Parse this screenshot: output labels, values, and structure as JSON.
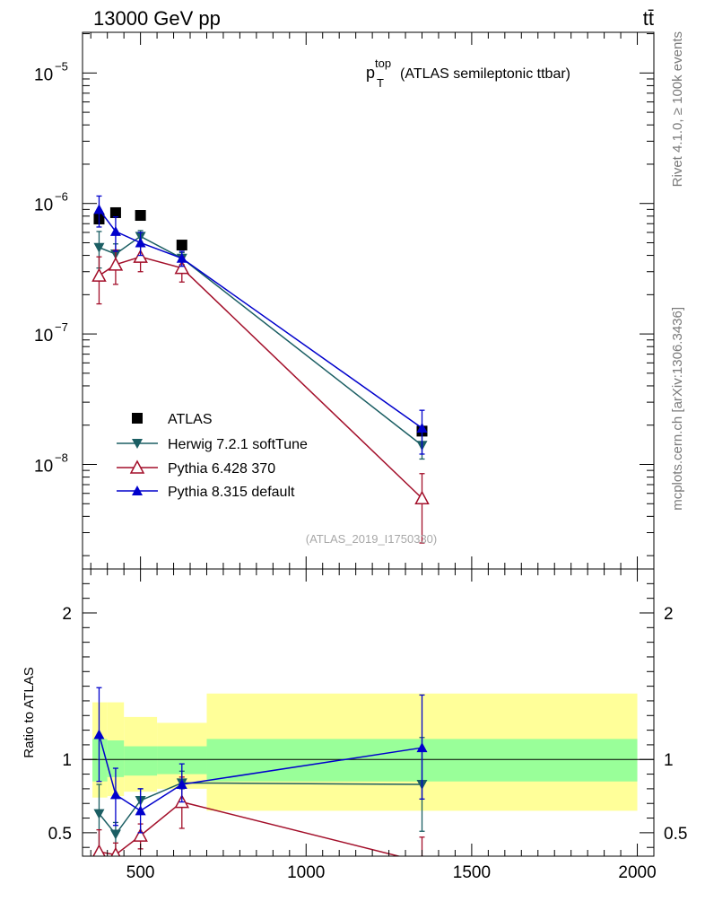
{
  "header": {
    "left_label": "13000 GeV pp",
    "right_label": "tt̄"
  },
  "side_labels": {
    "rivet": "Rivet 4.1.0, ≥ 100k events",
    "mcplots": "mcplots.cern.ch [arXiv:1306.3436]"
  },
  "chart_data": {
    "type": "scatter",
    "title_main": "p",
    "title_sup": "top",
    "title_sub": "T",
    "title_rest": "(ATLAS semileptonic ttbar)",
    "analysis_id": "(ATLAS_2019_I1750330)",
    "ratio_ylabel": "Ratio to ATLAS",
    "x": {
      "range": [
        325,
        2050
      ],
      "ticks": [
        500,
        1000,
        1500,
        2000
      ],
      "tick_labels": [
        "500",
        "1000",
        "1500",
        "2000"
      ]
    },
    "main_y": {
      "scale": "log",
      "range": [
        1.58e-09,
        2.05e-05
      ],
      "decade_exponents": [
        -8,
        -7,
        -6,
        -5
      ]
    },
    "ratio_y": {
      "range": [
        0.34,
        2.3
      ],
      "ticks": [
        0.5,
        1,
        2
      ],
      "tick_labels": [
        "0.5",
        "1",
        "2"
      ]
    },
    "bins": [
      [
        355,
        400
      ],
      [
        400,
        450
      ],
      [
        450,
        550
      ],
      [
        550,
        700
      ],
      [
        700,
        2000
      ]
    ],
    "band_inner": [
      [
        0.85,
        1.14
      ],
      [
        0.88,
        1.13
      ],
      [
        0.89,
        1.09
      ],
      [
        0.9,
        1.09
      ],
      [
        0.85,
        1.14
      ]
    ],
    "band_outer": [
      [
        0.74,
        1.39
      ],
      [
        0.75,
        1.39
      ],
      [
        0.78,
        1.29
      ],
      [
        0.8,
        1.25
      ],
      [
        0.65,
        1.45
      ]
    ],
    "series": [
      {
        "name": "ATLAS",
        "color": "#000000",
        "marker": "square",
        "x": [
          375,
          425,
          500,
          625,
          1350
        ],
        "y": [
          7.6e-07,
          8.5e-07,
          8.1e-07,
          4.8e-07,
          1.8e-08
        ]
      },
      {
        "name": "Herwig 7.2.1 softTune",
        "color": "#1b5e63",
        "marker": "triangle-down",
        "x": [
          375,
          425,
          500,
          625,
          1350
        ],
        "y": [
          4.6e-07,
          4.1e-07,
          5.6e-07,
          3.8e-07,
          1.4e-08
        ],
        "yerr": [
          [
            3.2e-07,
            6.1e-07
          ],
          [
            3.3e-07,
            4.9e-07
          ],
          [
            5e-07,
            6.2e-07
          ],
          [
            3.4e-07,
            4.2e-07
          ],
          [
            1.1e-08,
            1.8e-08
          ]
        ],
        "ratio": [
          0.63,
          0.49,
          0.72,
          0.84,
          0.83
        ],
        "ratio_err": [
          [
            0.35,
            0.83
          ],
          [
            0.35,
            0.57
          ],
          [
            0.63,
            0.8
          ],
          [
            0.8,
            0.92
          ],
          [
            0.51,
            1.15
          ]
        ]
      },
      {
        "name": "Pythia 6.428 370",
        "color": "#a30f2a",
        "marker": "triangle-up-open",
        "x": [
          375,
          425,
          500,
          625,
          1350
        ],
        "y": [
          2.8e-07,
          3.4e-07,
          3.9e-07,
          3.2e-07,
          5.5e-09
        ],
        "yerr": [
          [
            1.7e-07,
            3.9e-07
          ],
          [
            2.4e-07,
            4.4e-07
          ],
          [
            3e-07,
            4.8e-07
          ],
          [
            2.5e-07,
            3.9e-07
          ],
          [
            2.5e-09,
            8.5e-09
          ]
        ],
        "ratio": [
          0.37,
          0.35,
          0.48,
          0.71,
          0.3
        ],
        "ratio_err": [
          [
            0.22,
            0.52
          ],
          [
            0.27,
            0.43
          ],
          [
            0.39,
            0.56
          ],
          [
            0.53,
            0.88
          ],
          [
            0.14,
            0.47
          ]
        ]
      },
      {
        "name": "Pythia 8.315 default",
        "color": "#0000cc",
        "marker": "triangle-up",
        "x": [
          375,
          425,
          500,
          625,
          1350
        ],
        "y": [
          9e-07,
          6.1e-07,
          5e-07,
          3.8e-07,
          1.9e-08
        ],
        "yerr": [
          [
            6.6e-07,
            1.14e-06
          ],
          [
            4.3e-07,
            7.9e-07
          ],
          [
            4e-07,
            6e-07
          ],
          [
            3.3e-07,
            4.3e-07
          ],
          [
            1.2e-08,
            2.6e-08
          ]
        ],
        "ratio": [
          1.17,
          0.76,
          0.65,
          0.83,
          1.08
        ],
        "ratio_err": [
          [
            0.85,
            1.49
          ],
          [
            0.55,
            0.94
          ],
          [
            0.5,
            0.8
          ],
          [
            0.71,
            0.97
          ],
          [
            0.73,
            1.44
          ]
        ]
      }
    ]
  }
}
